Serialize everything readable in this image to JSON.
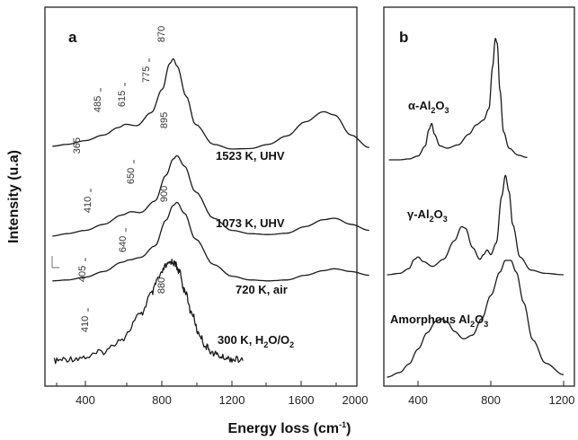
{
  "chart_data": [
    {
      "panel": "a",
      "type": "line",
      "xlim": [
        200,
        2000
      ],
      "xticks": [
        400,
        800,
        1200,
        1600,
        2000
      ],
      "xlabel": "Energy loss (cm-1)",
      "ylabel": "Intensity (u.a)",
      "series": [
        {
          "name": "1523 K, UHV",
          "peaks": [
            365,
            485,
            615,
            775,
            870
          ],
          "x": [
            220,
            300,
            400,
            500,
            580,
            620,
            680,
            760,
            820,
            860,
            880,
            900,
            950,
            1000,
            1100,
            1200,
            1300,
            1400,
            1500,
            1600,
            1700,
            1760,
            1850,
            1950
          ],
          "y": [
            0.58,
            0.62,
            0.7,
            0.82,
            0.98,
            1.05,
            1.02,
            1.3,
            1.8,
            2.35,
            2.45,
            2.3,
            1.65,
            1.05,
            0.62,
            0.52,
            0.53,
            0.62,
            0.8,
            1.1,
            1.32,
            1.25,
            0.82,
            0.55
          ]
        },
        {
          "name": "1073 K, UHV",
          "peaks": [
            410,
            650,
            895
          ],
          "x": [
            220,
            300,
            400,
            500,
            600,
            650,
            700,
            780,
            840,
            880,
            900,
            940,
            1000,
            1100,
            1200,
            1300,
            1400,
            1500,
            1600,
            1700,
            1760,
            1850,
            1950
          ],
          "y": [
            0.1,
            0.15,
            0.22,
            0.35,
            0.55,
            0.62,
            0.6,
            0.85,
            1.4,
            1.75,
            1.82,
            1.6,
            1.05,
            0.48,
            0.22,
            0.15,
            0.13,
            0.16,
            0.3,
            0.45,
            0.48,
            0.35,
            0.22
          ]
        },
        {
          "name": "720 K, air",
          "peaks": [
            405,
            640,
            900
          ],
          "x": [
            220,
            300,
            400,
            500,
            600,
            640,
            700,
            780,
            840,
            880,
            900,
            940,
            1000,
            1100,
            1200,
            1300,
            1400,
            1500,
            1600,
            1700,
            1760,
            1850,
            1950
          ],
          "y": [
            0.1,
            0.12,
            0.18,
            0.3,
            0.5,
            0.55,
            0.6,
            0.85,
            1.4,
            1.72,
            1.78,
            1.55,
            1.0,
            0.45,
            0.2,
            0.12,
            0.1,
            0.12,
            0.22,
            0.32,
            0.36,
            0.3,
            0.22
          ]
        },
        {
          "name": "300 K, H2O/O2",
          "peaks": [
            410,
            880
          ],
          "x": [
            230,
            300,
            400,
            500,
            600,
            700,
            760,
            800,
            840,
            870,
            890,
            910,
            940,
            980,
            1020,
            1060,
            1100,
            1150,
            1200,
            1260
          ],
          "y": [
            0.02,
            0.06,
            0.1,
            0.22,
            0.5,
            1.0,
            1.45,
            1.8,
            2.05,
            2.15,
            2.1,
            1.95,
            1.55,
            1.05,
            0.6,
            0.32,
            0.18,
            0.1,
            0.06,
            0.04
          ]
        }
      ]
    },
    {
      "panel": "b",
      "type": "line",
      "xlim": [
        200,
        1200
      ],
      "xticks": [
        400,
        800,
        1200
      ],
      "series": [
        {
          "name": "α-Al2O3",
          "x": [
            240,
            300,
            350,
            400,
            440,
            460,
            475,
            490,
            520,
            560,
            620,
            680,
            720,
            760,
            790,
            810,
            825,
            835,
            850,
            870,
            900,
            950,
            1000
          ],
          "y": [
            0.0,
            0.0,
            0.02,
            0.08,
            0.3,
            0.65,
            0.78,
            0.55,
            0.3,
            0.25,
            0.32,
            0.55,
            0.75,
            0.85,
            1.1,
            2.0,
            2.6,
            2.5,
            1.5,
            0.6,
            0.25,
            0.1,
            0.05
          ]
        },
        {
          "name": "γ-Al2O3",
          "x": [
            230,
            300,
            350,
            380,
            400,
            430,
            480,
            540,
            600,
            640,
            660,
            700,
            740,
            760,
            780,
            800,
            830,
            860,
            880,
            900,
            920,
            960,
            1020,
            1100,
            1200
          ],
          "y": [
            0.02,
            0.05,
            0.15,
            0.35,
            0.4,
            0.3,
            0.2,
            0.35,
            0.75,
            1.05,
            1.02,
            0.6,
            0.35,
            0.45,
            0.55,
            0.45,
            0.7,
            1.7,
            2.15,
            1.8,
            1.1,
            0.4,
            0.12,
            0.05,
            0.02
          ]
        },
        {
          "name": "Amorphous Al2O3",
          "x": [
            230,
            300,
            350,
            400,
            450,
            500,
            530,
            560,
            600,
            650,
            700,
            750,
            800,
            850,
            880,
            910,
            940,
            980,
            1030,
            1100,
            1200
          ],
          "y": [
            0.0,
            0.1,
            0.28,
            0.6,
            0.95,
            1.2,
            1.25,
            1.18,
            0.98,
            0.82,
            0.9,
            1.25,
            1.75,
            2.25,
            2.5,
            2.5,
            2.25,
            1.6,
            0.8,
            0.3,
            0.05
          ]
        }
      ]
    }
  ],
  "panel_a": {
    "label": "a",
    "ylabel": "Intensity (u.a)",
    "xlabel_main": "Energy loss (cm",
    "xlabel_sup": "-1",
    "xlabel_end": ")",
    "ticks": [
      "400",
      "800",
      "1200",
      "1600",
      "2000"
    ],
    "conditions": {
      "c1": "1523 K, UHV",
      "c2": "1073 K, UHV",
      "c3": "720 K, air",
      "c4_main": "300 K, H",
      "c4_s1": "2",
      "c4_mid": "O/O",
      "c4_s2": "2"
    },
    "peaks": {
      "p365": "365",
      "p485": "485",
      "p615": "615",
      "p775": "775",
      "p870": "870",
      "p410a": "410",
      "p650": "650",
      "p895": "895",
      "p405": "405",
      "p640": "640",
      "p900": "900",
      "p410b": "410",
      "p880": "880"
    }
  },
  "panel_b": {
    "label": "b",
    "ticks": [
      "400",
      "800",
      "1200"
    ],
    "alpha": {
      "main": "α-Al",
      "s1": "2",
      "mid": "O",
      "s2": "3"
    },
    "gamma": {
      "main": "γ-Al",
      "s1": "2",
      "mid": "O",
      "s2": "3"
    },
    "amorph": {
      "main": "Amorphous Al",
      "s1": "2",
      "mid": "O",
      "s2": "3"
    }
  }
}
